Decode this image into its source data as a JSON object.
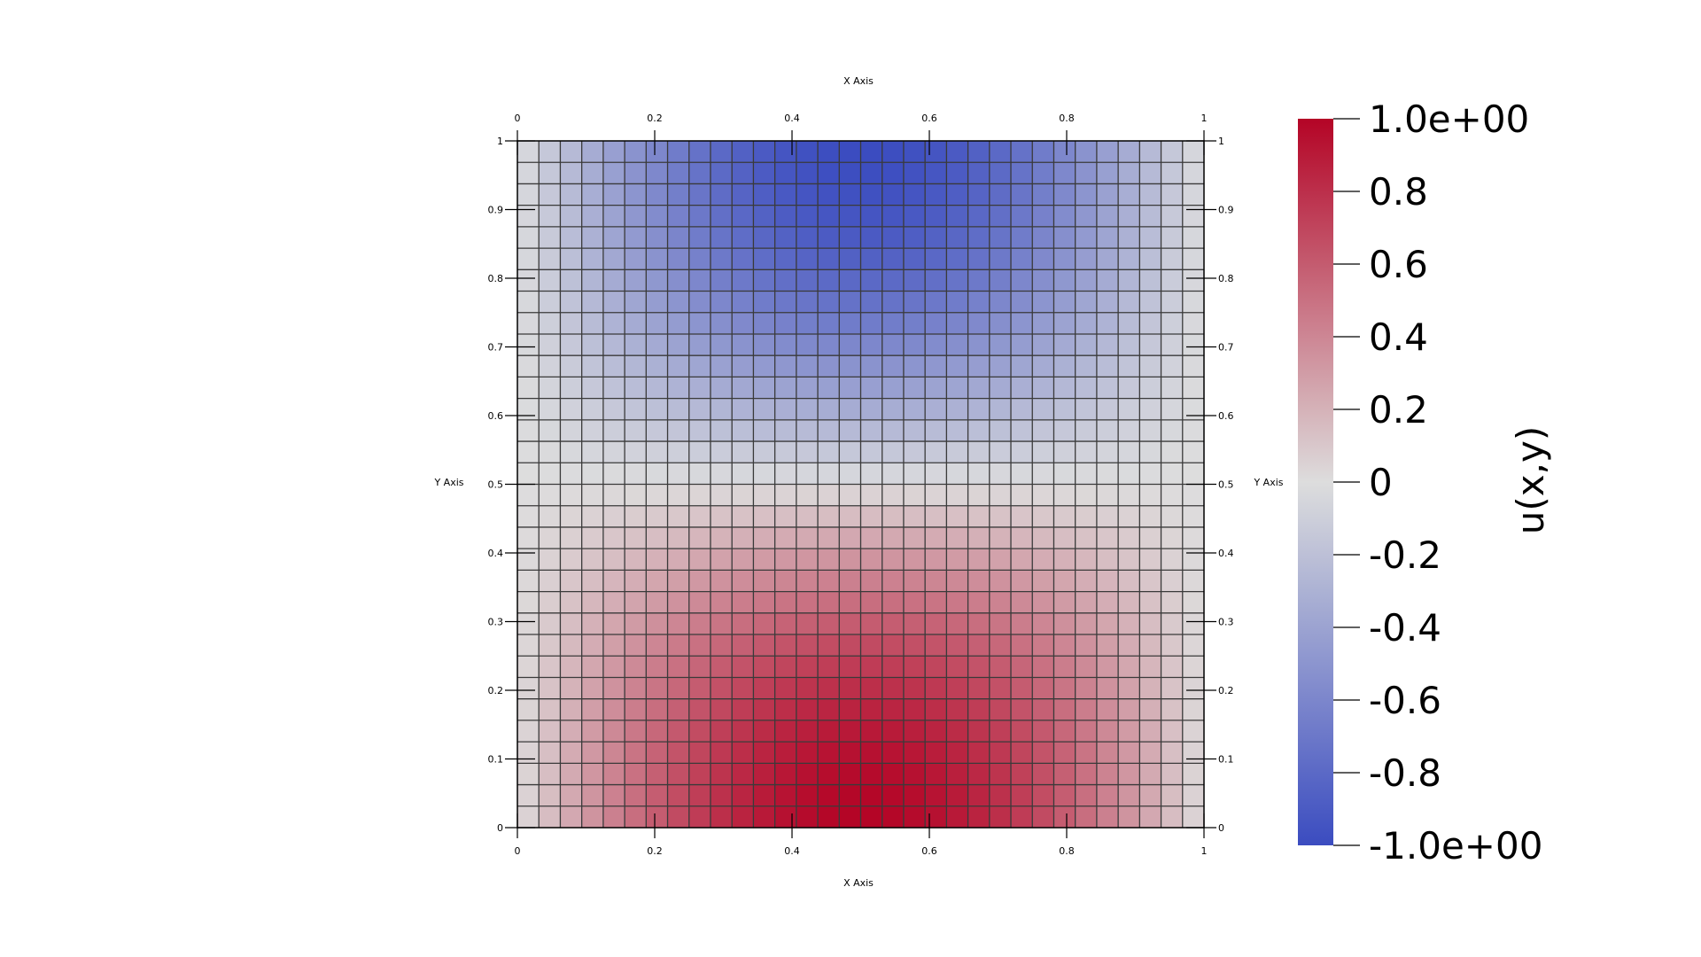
{
  "chart_data": {
    "type": "heatmap",
    "title": "",
    "field_label": "u(x,y)",
    "axes": {
      "x_label_top": "X Axis",
      "x_label_bottom": "X Axis",
      "y_label_left": "Y Axis",
      "y_label_right": "Y Axis",
      "xlim": [
        0,
        1
      ],
      "ylim": [
        0,
        1
      ],
      "x_ticks": [
        "0",
        "0.2",
        "0.4",
        "0.6",
        "0.8",
        "1"
      ],
      "y_ticks": [
        "0",
        "0.1",
        "0.2",
        "0.3",
        "0.4",
        "0.5",
        "0.6",
        "0.7",
        "0.8",
        "0.9",
        "1"
      ]
    },
    "grid": {
      "shown": true,
      "cells_x": 32,
      "cells_y": 32
    },
    "field": {
      "description": "u(x,y) = sin(pi*x) * cos(pi*y)",
      "value_range": [
        -1.0,
        1.0
      ]
    },
    "colorbar": {
      "position": "right",
      "orientation": "vertical",
      "range": [
        -1.0,
        1.0
      ],
      "tick_values": [
        1.0,
        0.8,
        0.6,
        0.4,
        0.2,
        0,
        -0.2,
        -0.4,
        -0.6,
        -0.8,
        -1.0
      ],
      "tick_labels": [
        "1.0e+00",
        "0.8",
        "0.6",
        "0.4",
        "0.2",
        "0",
        "-0.2",
        "-0.4",
        "-0.6",
        "-0.8",
        "-1.0e+00"
      ],
      "colormap": "Cool to Warm",
      "colors": {
        "low": "#3b4cc0",
        "mid": "#dddddd",
        "high": "#b40426"
      }
    }
  }
}
